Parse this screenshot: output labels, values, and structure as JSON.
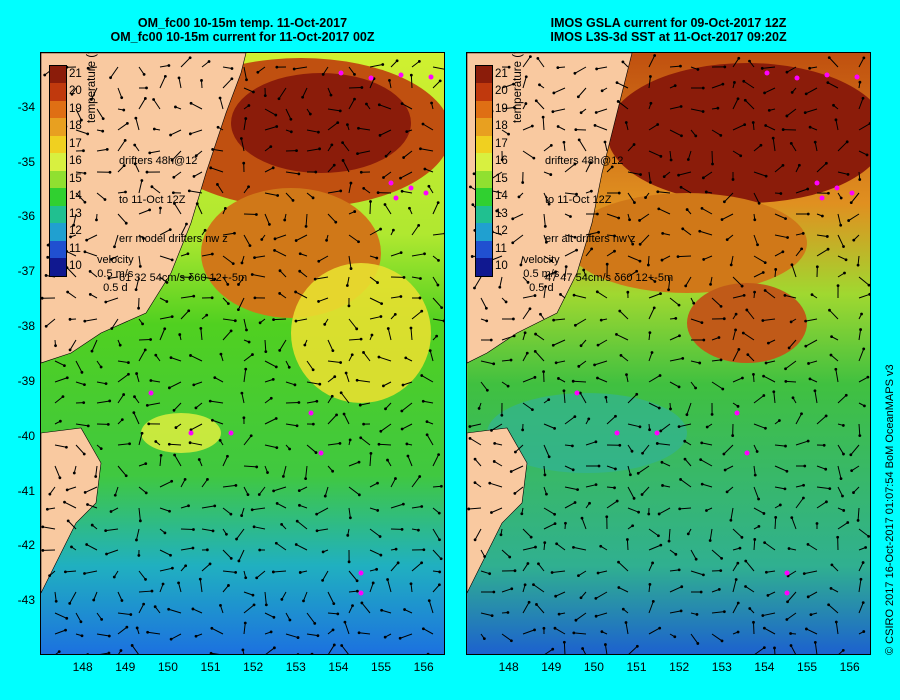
{
  "left_panel": {
    "title_line1": "OM_fc00 10-15m temp. 11-Oct-2017",
    "title_line2": "OM_fc00 10-15m current for 11-Oct-2017 00Z",
    "legend_line1": "drifters 48h@12",
    "legend_line2": "to 11-Oct 12Z",
    "legend_line3": "err model drifters nw z",
    "legend_line4": "61 32 54cm/s δ60 12+-5m"
  },
  "right_panel": {
    "title_line1": "IMOS GSLA current for 09-Oct-2017 12Z",
    "title_line2": "IMOS L3S-3d SST at 11-Oct-2017 09:20Z",
    "legend_line1": "drifters 48h@12",
    "legend_line2": "to 11-Oct 12Z",
    "legend_line3": "err alt drifters nw z",
    "legend_line4": "47 47 54cm/s δ60 12+-5m"
  },
  "colorbar": {
    "title": "temperature (°C)",
    "ticks": [
      "21",
      "20",
      "19",
      "18",
      "17",
      "16",
      "15",
      "14",
      "13",
      "12",
      "11",
      "10"
    ],
    "colors": [
      "#8b1c0a",
      "#c0390d",
      "#df6f14",
      "#e8a020",
      "#f0d020",
      "#d8f040",
      "#90e030",
      "#30d030",
      "#20c090",
      "#20a0d0",
      "#2050d0",
      "#101890"
    ]
  },
  "velocity": {
    "label": "velocity",
    "speed": "0.5 m/s",
    "duration": "0.5 d"
  },
  "y_axis_labels": [
    "-34",
    "-35",
    "-36",
    "-37",
    "-38",
    "-39",
    "-40",
    "-41",
    "-42",
    "-43"
  ],
  "x_axis_labels": [
    "148",
    "149",
    "150",
    "151",
    "152",
    "153",
    "154",
    "155",
    "156"
  ],
  "credit": "© CSIRO 2017   16-Oct-2017 01:07:54 BoM OceanMAPS v3",
  "map_extent": {
    "lon": [
      147.0,
      156.5
    ],
    "lat": [
      -44.0,
      -33.0
    ]
  }
}
